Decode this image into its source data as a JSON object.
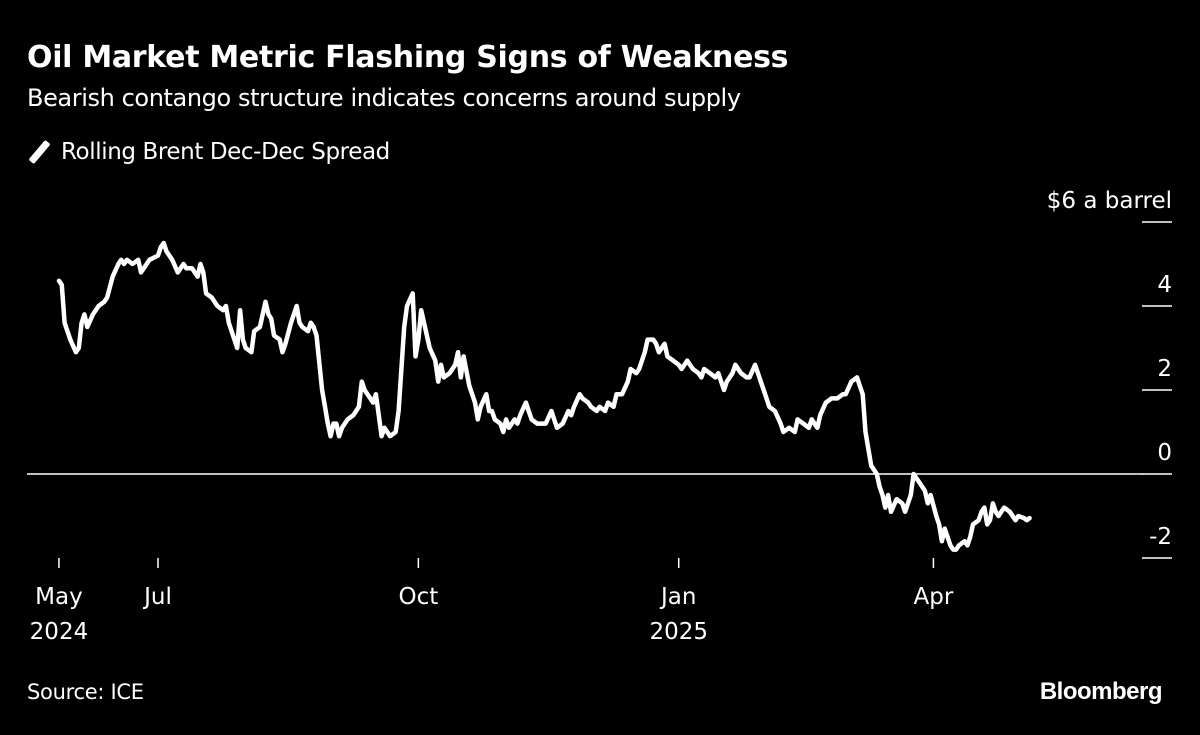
{
  "title": "Oil Market Metric Flashing Signs of Weakness",
  "subtitle": "Bearish contango structure indicates concerns around supply",
  "source": "Source: ICE",
  "brand": "Bloomberg",
  "chart_data": {
    "type": "line",
    "title": "Oil Market Metric Flashing Signs of Weakness",
    "subtitle": "Bearish contango structure indicates concerns around supply",
    "xlabel": "",
    "ylabel": "$ a barrel",
    "ylim": [
      -2,
      6
    ],
    "y_ticks": [
      {
        "value": 6,
        "label": "$6 a barrel"
      },
      {
        "value": 4,
        "label": "4"
      },
      {
        "value": 2,
        "label": "2"
      },
      {
        "value": 0,
        "label": "0"
      },
      {
        "value": -2,
        "label": "-2"
      }
    ],
    "x_ticks": [
      {
        "date": "2024-05-27",
        "label": "May",
        "sublabel": "2024"
      },
      {
        "date": "2024-07-01",
        "label": "Jul",
        "sublabel": ""
      },
      {
        "date": "2024-10-01",
        "label": "Oct",
        "sublabel": ""
      },
      {
        "date": "2025-01-01",
        "label": "Jan",
        "sublabel": "2025"
      },
      {
        "date": "2025-04-01",
        "label": "Apr",
        "sublabel": ""
      }
    ],
    "xlim": [
      "2024-05-17",
      "2025-06-30"
    ],
    "zero_line": true,
    "grid": false,
    "legend": {
      "position": "top-left",
      "entries": [
        "Rolling Brent Dec-Dec Spread"
      ]
    },
    "series": [
      {
        "name": "Rolling Brent Dec-Dec Spread",
        "color": "#ffffff",
        "points": [
          [
            "2024-05-27",
            4.6
          ],
          [
            "2024-05-28",
            4.5
          ],
          [
            "2024-05-29",
            3.6
          ],
          [
            "2024-05-31",
            3.2
          ],
          [
            "2024-06-02",
            2.9
          ],
          [
            "2024-06-03",
            3.0
          ],
          [
            "2024-06-04",
            3.6
          ],
          [
            "2024-06-05",
            3.8
          ],
          [
            "2024-06-06",
            3.5
          ],
          [
            "2024-06-08",
            3.8
          ],
          [
            "2024-06-10",
            4.0
          ],
          [
            "2024-06-12",
            4.1
          ],
          [
            "2024-06-13",
            4.2
          ],
          [
            "2024-06-15",
            4.7
          ],
          [
            "2024-06-17",
            5.0
          ],
          [
            "2024-06-18",
            5.1
          ],
          [
            "2024-06-19",
            5.0
          ],
          [
            "2024-06-20",
            5.1
          ],
          [
            "2024-06-22",
            5.0
          ],
          [
            "2024-06-24",
            5.1
          ],
          [
            "2024-06-25",
            4.8
          ],
          [
            "2024-06-26",
            4.9
          ],
          [
            "2024-06-27",
            5.0
          ],
          [
            "2024-06-28",
            5.1
          ],
          [
            "2024-07-01",
            5.2
          ],
          [
            "2024-07-02",
            5.4
          ],
          [
            "2024-07-03",
            5.5
          ],
          [
            "2024-07-04",
            5.3
          ],
          [
            "2024-07-06",
            5.1
          ],
          [
            "2024-07-08",
            4.8
          ],
          [
            "2024-07-10",
            5.0
          ],
          [
            "2024-07-11",
            4.9
          ],
          [
            "2024-07-13",
            4.9
          ],
          [
            "2024-07-15",
            4.7
          ],
          [
            "2024-07-16",
            5.0
          ],
          [
            "2024-07-17",
            4.8
          ],
          [
            "2024-07-18",
            4.3
          ],
          [
            "2024-07-20",
            4.2
          ],
          [
            "2024-07-22",
            4.0
          ],
          [
            "2024-07-24",
            3.9
          ],
          [
            "2024-07-25",
            4.0
          ],
          [
            "2024-07-26",
            3.6
          ],
          [
            "2024-07-28",
            3.2
          ],
          [
            "2024-07-29",
            3.0
          ],
          [
            "2024-07-30",
            3.9
          ],
          [
            "2024-07-31",
            3.2
          ],
          [
            "2024-08-01",
            3.0
          ],
          [
            "2024-08-03",
            2.9
          ],
          [
            "2024-08-04",
            3.4
          ],
          [
            "2024-08-06",
            3.5
          ],
          [
            "2024-08-08",
            4.1
          ],
          [
            "2024-08-09",
            3.8
          ],
          [
            "2024-08-10",
            3.7
          ],
          [
            "2024-08-11",
            3.3
          ],
          [
            "2024-08-13",
            3.2
          ],
          [
            "2024-08-14",
            2.9
          ],
          [
            "2024-08-15",
            3.1
          ],
          [
            "2024-08-17",
            3.6
          ],
          [
            "2024-08-19",
            4.0
          ],
          [
            "2024-08-20",
            3.6
          ],
          [
            "2024-08-21",
            3.5
          ],
          [
            "2024-08-23",
            3.4
          ],
          [
            "2024-08-24",
            3.6
          ],
          [
            "2024-08-25",
            3.5
          ],
          [
            "2024-08-26",
            3.3
          ],
          [
            "2024-08-28",
            2.0
          ],
          [
            "2024-08-29",
            1.6
          ],
          [
            "2024-08-30",
            1.2
          ],
          [
            "2024-08-31",
            0.9
          ],
          [
            "2024-09-01",
            1.2
          ],
          [
            "2024-09-02",
            1.2
          ],
          [
            "2024-09-03",
            0.9
          ],
          [
            "2024-09-04",
            1.1
          ],
          [
            "2024-09-06",
            1.3
          ],
          [
            "2024-09-08",
            1.4
          ],
          [
            "2024-09-09",
            1.5
          ],
          [
            "2024-09-10",
            1.6
          ],
          [
            "2024-09-11",
            2.2
          ],
          [
            "2024-09-12",
            2.0
          ],
          [
            "2024-09-14",
            1.8
          ],
          [
            "2024-09-15",
            1.7
          ],
          [
            "2024-09-16",
            1.9
          ],
          [
            "2024-09-18",
            0.9
          ],
          [
            "2024-09-19",
            1.1
          ],
          [
            "2024-09-21",
            0.9
          ],
          [
            "2024-09-23",
            1.0
          ],
          [
            "2024-09-24",
            1.5
          ],
          [
            "2024-09-26",
            3.5
          ],
          [
            "2024-09-27",
            4.0
          ],
          [
            "2024-09-29",
            4.3
          ],
          [
            "2024-09-30",
            2.8
          ],
          [
            "2024-10-01",
            3.2
          ],
          [
            "2024-10-02",
            3.9
          ],
          [
            "2024-10-03",
            3.6
          ],
          [
            "2024-10-05",
            3.0
          ],
          [
            "2024-10-07",
            2.7
          ],
          [
            "2024-10-08",
            2.2
          ],
          [
            "2024-10-09",
            2.6
          ],
          [
            "2024-10-10",
            2.3
          ],
          [
            "2024-10-12",
            2.4
          ],
          [
            "2024-10-14",
            2.6
          ],
          [
            "2024-10-15",
            2.9
          ],
          [
            "2024-10-16",
            2.3
          ],
          [
            "2024-10-17",
            2.8
          ],
          [
            "2024-10-19",
            2.1
          ],
          [
            "2024-10-21",
            1.7
          ],
          [
            "2024-10-22",
            1.3
          ],
          [
            "2024-10-23",
            1.6
          ],
          [
            "2024-10-25",
            1.9
          ],
          [
            "2024-10-26",
            1.5
          ],
          [
            "2024-10-27",
            1.5
          ],
          [
            "2024-10-28",
            1.3
          ],
          [
            "2024-10-30",
            1.2
          ],
          [
            "2024-10-31",
            1.0
          ],
          [
            "2024-11-01",
            1.3
          ],
          [
            "2024-11-02",
            1.1
          ],
          [
            "2024-11-04",
            1.3
          ],
          [
            "2024-11-05",
            1.2
          ],
          [
            "2024-11-06",
            1.4
          ],
          [
            "2024-11-08",
            1.7
          ],
          [
            "2024-11-09",
            1.5
          ],
          [
            "2024-11-10",
            1.3
          ],
          [
            "2024-11-12",
            1.2
          ],
          [
            "2024-11-13",
            1.2
          ],
          [
            "2024-11-15",
            1.2
          ],
          [
            "2024-11-17",
            1.5
          ],
          [
            "2024-11-18",
            1.3
          ],
          [
            "2024-11-19",
            1.1
          ],
          [
            "2024-11-21",
            1.2
          ],
          [
            "2024-11-23",
            1.5
          ],
          [
            "2024-11-24",
            1.4
          ],
          [
            "2024-11-25",
            1.6
          ],
          [
            "2024-11-27",
            1.9
          ],
          [
            "2024-11-28",
            1.8
          ],
          [
            "2024-11-30",
            1.7
          ],
          [
            "2024-12-01",
            1.6
          ],
          [
            "2024-12-03",
            1.5
          ],
          [
            "2024-12-04",
            1.6
          ],
          [
            "2024-12-06",
            1.5
          ],
          [
            "2024-12-07",
            1.7
          ],
          [
            "2024-12-09",
            1.6
          ],
          [
            "2024-12-10",
            1.9
          ],
          [
            "2024-12-12",
            1.9
          ],
          [
            "2024-12-14",
            2.2
          ],
          [
            "2024-12-15",
            2.5
          ],
          [
            "2024-12-17",
            2.4
          ],
          [
            "2024-12-18",
            2.5
          ],
          [
            "2024-12-20",
            2.9
          ],
          [
            "2024-12-21",
            3.2
          ],
          [
            "2024-12-23",
            3.2
          ],
          [
            "2024-12-24",
            3.1
          ],
          [
            "2024-12-25",
            2.9
          ],
          [
            "2024-12-27",
            3.1
          ],
          [
            "2024-12-28",
            2.8
          ],
          [
            "2024-12-30",
            2.7
          ],
          [
            "2025-01-01",
            2.6
          ],
          [
            "2025-01-02",
            2.5
          ],
          [
            "2025-01-04",
            2.7
          ],
          [
            "2025-01-06",
            2.5
          ],
          [
            "2025-01-08",
            2.4
          ],
          [
            "2025-01-09",
            2.3
          ],
          [
            "2025-01-10",
            2.5
          ],
          [
            "2025-01-12",
            2.4
          ],
          [
            "2025-01-14",
            2.3
          ],
          [
            "2025-01-15",
            2.4
          ],
          [
            "2025-01-17",
            2.0
          ],
          [
            "2025-01-18",
            2.2
          ],
          [
            "2025-01-20",
            2.4
          ],
          [
            "2025-01-21",
            2.6
          ],
          [
            "2025-01-23",
            2.4
          ],
          [
            "2025-01-25",
            2.3
          ],
          [
            "2025-01-26",
            2.3
          ],
          [
            "2025-01-28",
            2.6
          ],
          [
            "2025-01-30",
            2.2
          ],
          [
            "2025-02-01",
            1.8
          ],
          [
            "2025-02-02",
            1.6
          ],
          [
            "2025-02-04",
            1.5
          ],
          [
            "2025-02-06",
            1.2
          ],
          [
            "2025-02-07",
            1.0
          ],
          [
            "2025-02-09",
            1.1
          ],
          [
            "2025-02-11",
            1.0
          ],
          [
            "2025-02-12",
            1.3
          ],
          [
            "2025-02-14",
            1.2
          ],
          [
            "2025-02-16",
            1.1
          ],
          [
            "2025-02-17",
            1.3
          ],
          [
            "2025-02-19",
            1.1
          ],
          [
            "2025-02-20",
            1.4
          ],
          [
            "2025-02-22",
            1.7
          ],
          [
            "2025-02-24",
            1.8
          ],
          [
            "2025-02-26",
            1.8
          ],
          [
            "2025-02-28",
            1.9
          ],
          [
            "2025-03-01",
            1.9
          ],
          [
            "2025-03-03",
            2.2
          ],
          [
            "2025-03-05",
            2.3
          ],
          [
            "2025-03-06",
            2.1
          ],
          [
            "2025-03-07",
            1.9
          ],
          [
            "2025-03-08",
            1.0
          ],
          [
            "2025-03-10",
            0.2
          ],
          [
            "2025-03-12",
            0.0
          ],
          [
            "2025-03-13",
            -0.3
          ],
          [
            "2025-03-14",
            -0.5
          ],
          [
            "2025-03-15",
            -0.8
          ],
          [
            "2025-03-16",
            -0.5
          ],
          [
            "2025-03-17",
            -0.9
          ],
          [
            "2025-03-19",
            -0.6
          ],
          [
            "2025-03-21",
            -0.7
          ],
          [
            "2025-03-22",
            -0.9
          ],
          [
            "2025-03-24",
            -0.5
          ],
          [
            "2025-03-25",
            0.0
          ],
          [
            "2025-03-27",
            -0.2
          ],
          [
            "2025-03-29",
            -0.4
          ],
          [
            "2025-03-30",
            -0.7
          ],
          [
            "2025-03-31",
            -0.5
          ],
          [
            "2025-04-02",
            -1.0
          ],
          [
            "2025-04-03",
            -1.2
          ],
          [
            "2025-04-04",
            -1.6
          ],
          [
            "2025-04-05",
            -1.3
          ],
          [
            "2025-04-07",
            -1.7
          ],
          [
            "2025-04-08",
            -1.8
          ],
          [
            "2025-04-09",
            -1.8
          ],
          [
            "2025-04-10",
            -1.7
          ],
          [
            "2025-04-12",
            -1.6
          ],
          [
            "2025-04-13",
            -1.7
          ],
          [
            "2025-04-14",
            -1.5
          ],
          [
            "2025-04-15",
            -1.2
          ],
          [
            "2025-04-17",
            -1.1
          ],
          [
            "2025-04-18",
            -0.9
          ],
          [
            "2025-04-19",
            -0.8
          ],
          [
            "2025-04-20",
            -1.2
          ],
          [
            "2025-04-21",
            -1.1
          ],
          [
            "2025-04-22",
            -0.7
          ],
          [
            "2025-04-23",
            -0.9
          ],
          [
            "2025-04-24",
            -1.0
          ],
          [
            "2025-04-25",
            -0.9
          ],
          [
            "2025-04-26",
            -0.8
          ],
          [
            "2025-04-28",
            -0.9
          ],
          [
            "2025-04-30",
            -1.1
          ],
          [
            "2025-05-01",
            -1.0
          ],
          [
            "2025-05-03",
            -1.05
          ],
          [
            "2025-05-04",
            -1.1
          ],
          [
            "2025-05-05",
            -1.05
          ]
        ]
      }
    ]
  }
}
